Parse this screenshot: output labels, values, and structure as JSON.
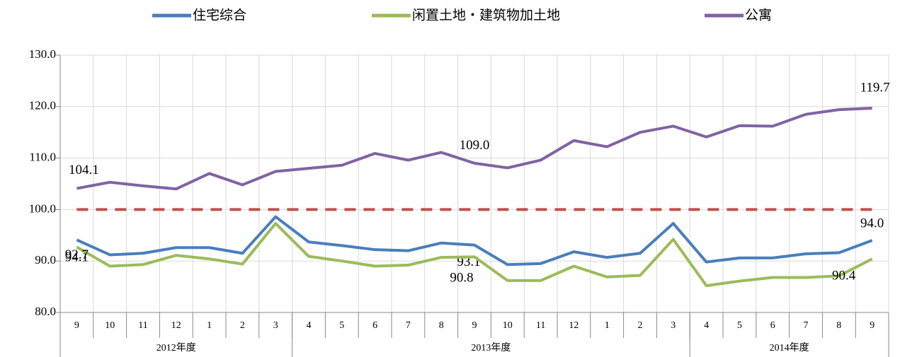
{
  "chart_data": {
    "type": "line",
    "categories": [
      "9",
      "10",
      "11",
      "12",
      "1",
      "2",
      "3",
      "4",
      "5",
      "6",
      "7",
      "8",
      "9",
      "10",
      "11",
      "12",
      "1",
      "2",
      "3",
      "4",
      "5",
      "6",
      "7",
      "8",
      "9"
    ],
    "groups": [
      {
        "label": "2012年度",
        "span": 7
      },
      {
        "label": "2013年度",
        "span": 12
      },
      {
        "label": "2014年度",
        "span": 6
      }
    ],
    "series": [
      {
        "name": "住宅综合",
        "color": "#4a7ebb",
        "values": [
          94.1,
          91.2,
          91.5,
          92.6,
          92.6,
          91.5,
          98.6,
          93.7,
          93.0,
          92.2,
          92.0,
          93.5,
          93.1,
          89.3,
          89.5,
          91.8,
          90.7,
          91.5,
          97.3,
          89.8,
          90.6,
          90.6,
          91.4,
          91.6,
          94.0
        ],
        "value_labels": [
          "94.1",
          null,
          null,
          null,
          null,
          null,
          null,
          null,
          null,
          null,
          null,
          null,
          "93.1",
          null,
          null,
          null,
          null,
          null,
          null,
          null,
          null,
          null,
          null,
          null,
          "94.0"
        ]
      },
      {
        "name": "闲置土地・建筑物加土地",
        "color": "#9bbb59",
        "values": [
          92.7,
          89.0,
          89.3,
          91.1,
          90.4,
          89.4,
          97.3,
          90.9,
          90.0,
          89.0,
          89.2,
          90.7,
          90.8,
          86.2,
          86.2,
          89.0,
          86.9,
          87.2,
          94.2,
          85.2,
          86.1,
          86.8,
          86.8,
          87.1,
          90.4
        ],
        "value_labels": [
          "92.7",
          null,
          null,
          null,
          null,
          null,
          null,
          null,
          null,
          null,
          null,
          null,
          "90.8",
          null,
          null,
          null,
          null,
          null,
          null,
          null,
          null,
          null,
          null,
          null,
          "90.4"
        ]
      },
      {
        "name": "公寓",
        "color": "#7f63a2",
        "values": [
          104.1,
          105.3,
          104.6,
          104.0,
          107.0,
          104.8,
          107.4,
          108.0,
          108.6,
          110.9,
          109.6,
          111.1,
          109.0,
          108.1,
          109.6,
          113.4,
          112.2,
          115.0,
          116.2,
          114.1,
          116.3,
          116.2,
          118.5,
          119.4,
          119.7
        ],
        "value_labels": [
          "104.1",
          null,
          null,
          null,
          null,
          null,
          null,
          null,
          null,
          null,
          null,
          null,
          "109.0",
          null,
          null,
          null,
          null,
          null,
          null,
          null,
          null,
          null,
          null,
          null,
          "119.7"
        ]
      }
    ],
    "reference_line": {
      "value": 100,
      "color": "#c0504d"
    },
    "ylim": [
      80,
      130
    ],
    "yticks": [
      {
        "value": 80,
        "label": "80.0"
      },
      {
        "value": 90,
        "label": "90.0"
      },
      {
        "value": 100,
        "label": "100.0"
      },
      {
        "value": 110,
        "label": "110.0"
      },
      {
        "value": 120,
        "label": "120.0"
      },
      {
        "value": 130,
        "label": "130.0"
      }
    ],
    "grid": true
  }
}
